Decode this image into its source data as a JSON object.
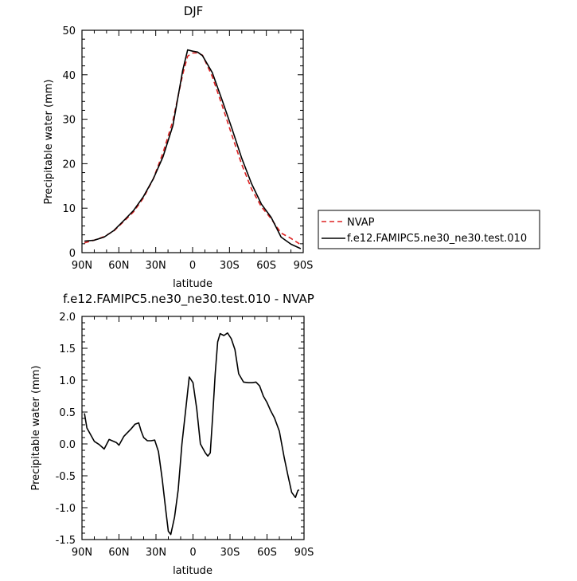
{
  "chart_data": [
    {
      "type": "line",
      "title": "DJF",
      "xlabel": "latitude",
      "ylabel": "Precipitable water (mm)",
      "xlim": [
        90,
        -90
      ],
      "ylim": [
        0,
        50
      ],
      "x_unit": "degrees latitude (positive = N, negative = S)",
      "xticks": [
        90,
        60,
        30,
        0,
        -30,
        -60,
        -90
      ],
      "xtick_labels": [
        "90N",
        "60N",
        "30N",
        "0",
        "30S",
        "60S",
        "90S"
      ],
      "yticks": [
        0,
        10,
        20,
        30,
        40,
        50
      ],
      "ytick_labels": [
        "0",
        "10",
        "20",
        "30",
        "40",
        "50"
      ],
      "legend_position": "right",
      "legend": [
        "NVAP",
        "f.e12.FAMIPC5.ne30_ne30.test.010"
      ],
      "series": [
        {
          "name": "NVAP",
          "color": "#dd2222",
          "dash": "dashed",
          "x": [
            88,
            80,
            72,
            64,
            56,
            48,
            40,
            32,
            24,
            16,
            8,
            4,
            0,
            -4,
            -8,
            -16,
            -24,
            -32,
            -40,
            -48,
            -56,
            -64,
            -72,
            -80,
            -88
          ],
          "values": [
            2.2,
            2.8,
            3.6,
            4.9,
            7.0,
            9.2,
            12.3,
            16.6,
            22.5,
            29.7,
            40.1,
            44.2,
            44.9,
            44.9,
            44.4,
            39.6,
            33.1,
            26.4,
            19.8,
            14.3,
            10.3,
            7.6,
            4.4,
            3.2,
            1.8
          ]
        },
        {
          "name": "f.e12.FAMIPC5.ne30_ne30.test.010",
          "color": "#000000",
          "dash": "solid",
          "x": [
            88,
            80,
            72,
            64,
            56,
            48,
            40,
            32,
            24,
            16,
            8,
            4,
            0,
            -4,
            -8,
            -16,
            -24,
            -32,
            -40,
            -48,
            -56,
            -64,
            -72,
            -80,
            -88
          ],
          "values": [
            2.6,
            2.8,
            3.5,
            5.0,
            7.2,
            9.5,
            12.6,
            16.6,
            21.6,
            28.6,
            41.0,
            45.6,
            45.3,
            45.1,
            44.3,
            40.5,
            34.3,
            27.9,
            21.2,
            15.5,
            10.9,
            7.9,
            3.5,
            1.9,
            0.9
          ]
        }
      ]
    },
    {
      "type": "line",
      "title": "f.e12.FAMIPC5.ne30_ne30.test.010 - NVAP",
      "xlabel": "latitude",
      "ylabel": "Precipitable water (mm)",
      "xlim": [
        90,
        -90
      ],
      "ylim": [
        -1.5,
        2.0
      ],
      "x_unit": "degrees latitude (positive = N, negative = S)",
      "xticks": [
        90,
        60,
        30,
        0,
        -30,
        -60,
        -90
      ],
      "xtick_labels": [
        "90N",
        "60N",
        "30N",
        "0",
        "30S",
        "60S",
        "90S"
      ],
      "yticks": [
        -1.5,
        -1.0,
        -0.5,
        0.0,
        0.5,
        1.0,
        1.5,
        2.0
      ],
      "ytick_labels": [
        "-1.5",
        "-1.0",
        "-0.5",
        "0.0",
        "0.5",
        "1.0",
        "1.5",
        "2.0"
      ],
      "series": [
        {
          "color": "#000000",
          "dash": "solid",
          "x": [
            88,
            86,
            80,
            76,
            72,
            68,
            62,
            60,
            56,
            50,
            47,
            44,
            42,
            40,
            37,
            34,
            31,
            28,
            25,
            22,
            20,
            18,
            15,
            12,
            9,
            6,
            3,
            0,
            -3,
            -6,
            -8,
            -10,
            -12,
            -14,
            -16,
            -18,
            -20,
            -22,
            -25,
            -28,
            -31,
            -34,
            -37,
            -41,
            -45,
            -48,
            -51,
            -54,
            -57,
            -60,
            -63,
            -66,
            -70,
            -74,
            -77,
            -80,
            -83,
            -85,
            -86
          ],
          "values": [
            0.48,
            0.25,
            0.04,
            -0.01,
            -0.08,
            0.07,
            0.02,
            -0.02,
            0.12,
            0.24,
            0.31,
            0.33,
            0.2,
            0.1,
            0.05,
            0.05,
            0.06,
            -0.12,
            -0.55,
            -1.05,
            -1.37,
            -1.42,
            -1.15,
            -0.72,
            0.0,
            0.52,
            1.05,
            0.96,
            0.55,
            0.0,
            -0.07,
            -0.14,
            -0.19,
            -0.14,
            0.45,
            1.1,
            1.6,
            1.73,
            1.7,
            1.74,
            1.65,
            1.48,
            1.1,
            0.97,
            0.96,
            0.96,
            0.97,
            0.91,
            0.75,
            0.65,
            0.52,
            0.41,
            0.2,
            -0.22,
            -0.5,
            -0.76,
            -0.84,
            -0.73,
            -0.72
          ]
        }
      ]
    }
  ]
}
